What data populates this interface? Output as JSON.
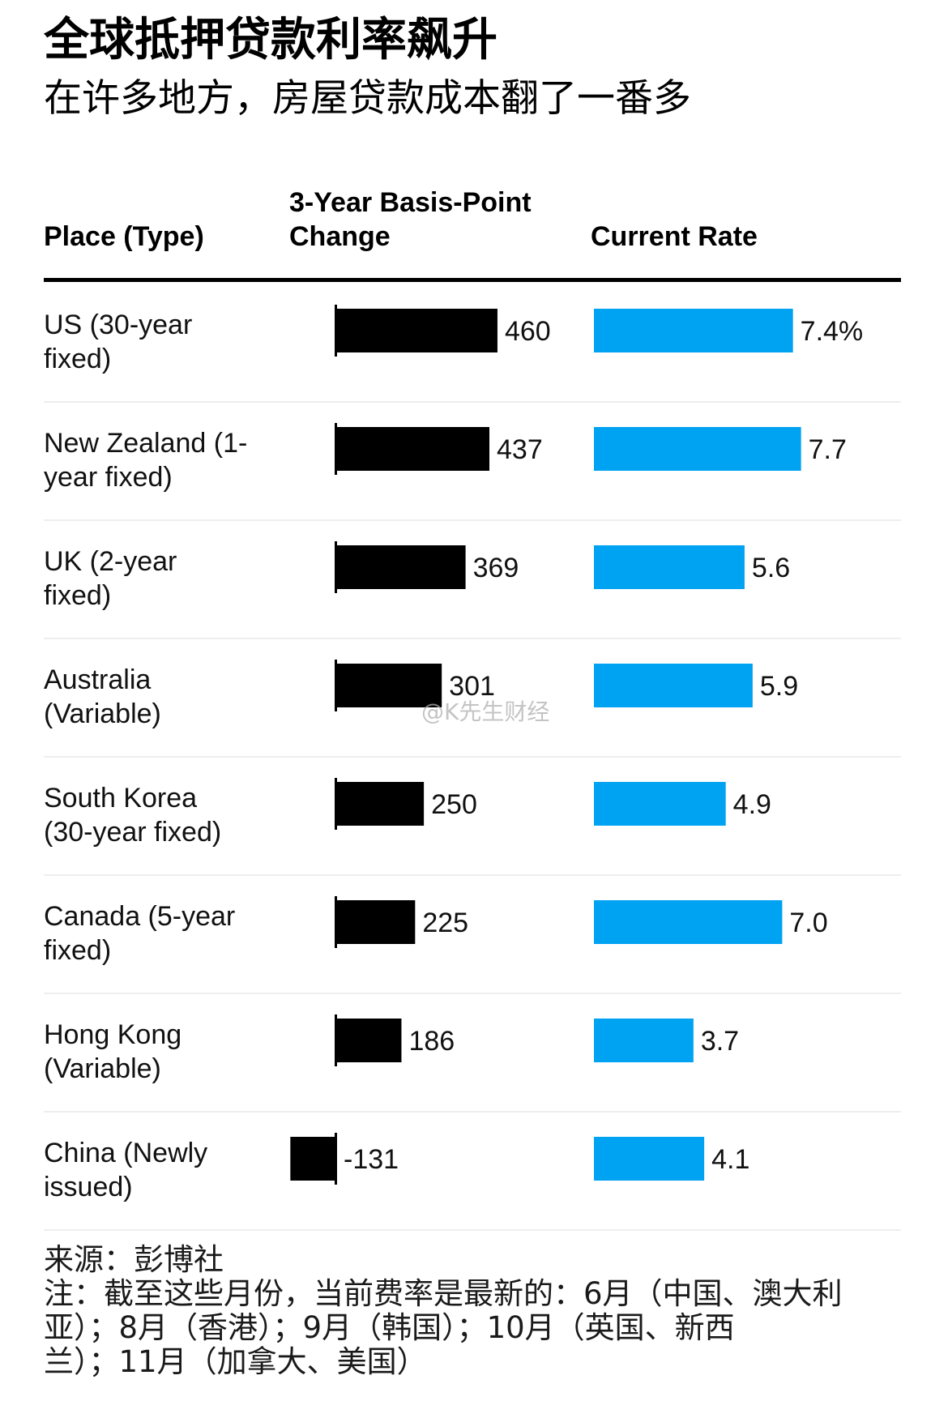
{
  "title": "全球抵押贷款利率飙升",
  "subtitle": "在许多地方，房屋贷款成本翻了一番多",
  "headers": {
    "place": "Place (Type)",
    "change_line1": "3-Year Basis-Point",
    "change_line2": "Change",
    "rate": "Current Rate"
  },
  "colors": {
    "change_bar": "#000000",
    "rate_bar": "#00a2f2",
    "row_divider": "#eeeeee"
  },
  "chart_data": {
    "type": "bar",
    "title": "全球抵押贷款利率飙升",
    "subtitle": "在许多地方，房屋贷款成本翻了一番多",
    "categories": [
      "US (30-year fixed)",
      "New Zealand (1-year fixed)",
      "UK (2-year fixed)",
      "Australia (Variable)",
      "South Korea (30-year fixed)",
      "Canada (5-year fixed)",
      "Hong Kong (Variable)",
      "China (Newly issued)"
    ],
    "category_lines": [
      [
        "US (30-year",
        "fixed)"
      ],
      [
        "New Zealand (1-",
        "year fixed)"
      ],
      [
        "UK (2-year",
        "fixed)"
      ],
      [
        "Australia",
        "(Variable)"
      ],
      [
        "South Korea",
        "(30-year fixed)"
      ],
      [
        "Canada (5-year",
        "fixed)"
      ],
      [
        "Hong Kong",
        "(Variable)"
      ],
      [
        "China (Newly",
        "issued)"
      ]
    ],
    "series": [
      {
        "name": "3-Year Basis-Point Change",
        "values": [
          460,
          437,
          369,
          301,
          250,
          225,
          186,
          -131
        ],
        "value_labels": [
          "460",
          "437",
          "369",
          "301",
          "250",
          "225",
          "186",
          "-131"
        ]
      },
      {
        "name": "Current Rate",
        "values": [
          7.4,
          7.7,
          5.6,
          5.9,
          4.9,
          7.0,
          3.7,
          4.1
        ],
        "value_labels": [
          "7.4%",
          "7.7",
          "5.6",
          "5.9",
          "4.9",
          "7.0",
          "3.7",
          "4.1"
        ]
      }
    ]
  },
  "watermark": "@K先生财经",
  "footer": {
    "lines": [
      "来源：彭博社",
      "注：截至这些月份，当前费率是最新的：6月（中国、澳大利",
      "亚）；8月（香港）；9月（韩国）；10月（英国、新西",
      "兰）；11月（加拿大、美国）"
    ]
  }
}
